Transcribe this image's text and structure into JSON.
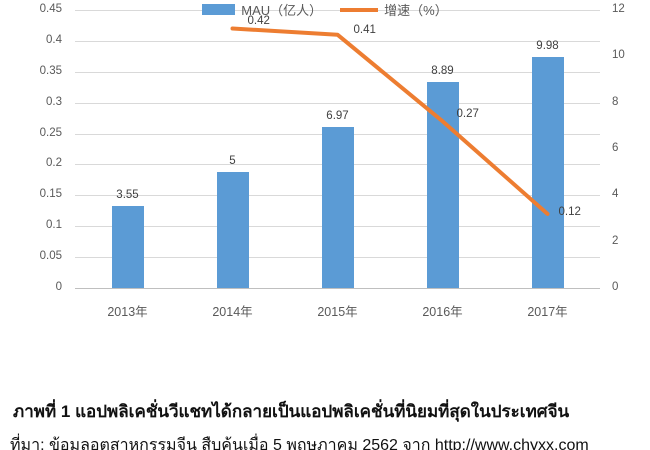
{
  "chart_data": {
    "type": "bar",
    "subtype": "combo-bar-line",
    "categories": [
      "2013年",
      "2014年",
      "2015年",
      "2016年",
      "2017年"
    ],
    "series": [
      {
        "name": "MAU（亿人）",
        "type": "bar",
        "axis": "right",
        "values": [
          3.55,
          5,
          6.97,
          8.89,
          9.98
        ],
        "labels": [
          "3.55",
          "5",
          "6.97",
          "8.89",
          "9.98"
        ]
      },
      {
        "name": "增速（%）",
        "type": "line",
        "axis": "left",
        "values": [
          null,
          0.42,
          0.41,
          0.27,
          0.12
        ],
        "labels": [
          null,
          "0.42",
          "0.41",
          "0.27",
          "0.12"
        ]
      }
    ],
    "left_axis": {
      "min": 0,
      "max": 0.45,
      "step": 0.05,
      "ticks": [
        "0.45",
        "0.4",
        "0.35",
        "0.3",
        "0.25",
        "0.2",
        "0.15",
        "0.1",
        "0.05",
        "0"
      ]
    },
    "right_axis": {
      "min": 0,
      "max": 12,
      "step": 2,
      "ticks": [
        "12",
        "10",
        "8",
        "6",
        "4",
        "2",
        "0"
      ]
    },
    "grid": true,
    "legend_position": "bottom",
    "title": ""
  },
  "caption": {
    "title": "ภาพที่ 1 แอปพลิเคชั่นวีแชทได้กลายเป็นแอปพลิเคชั่นที่นิยมที่สุดในประเทศจีน",
    "source": "ที่มา: ข้อมูลอุตสาหกรรมจีน สืบค้นเมื่อ 5 พฤษภาคม 2562 จาก http://www.chyxx.com"
  },
  "colors": {
    "bar": "#5b9bd5",
    "line": "#ed7d31",
    "axis_text": "#595959",
    "data_label_text": "#404040",
    "gridline": "#d9d9d9",
    "axis_line": "#bfbfbf",
    "caption_text": "#111111"
  }
}
